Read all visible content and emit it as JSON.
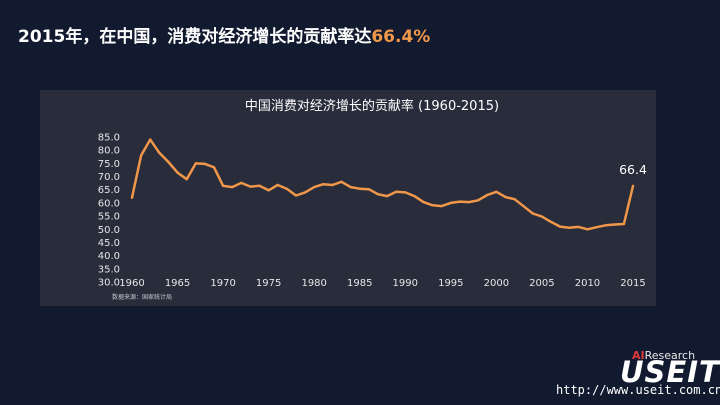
{
  "headline": {
    "prefix": "2015年，在中国，消费对经济增长的贡献率达",
    "value": "66.4%"
  },
  "chart_data": {
    "type": "line",
    "title": "中国消费对经济增长的贡献率 (1960-2015)",
    "source": "数据来源：国家统计局",
    "xlabel": "",
    "ylabel": "",
    "ylim": [
      30,
      85
    ],
    "y_ticks": [
      "85.0",
      "80.0",
      "75.0",
      "70.0",
      "65.0",
      "60.0",
      "55.0",
      "50.0",
      "45.0",
      "40.0",
      "35.0",
      "30.0"
    ],
    "x_ticks": [
      "1960",
      "1965",
      "1970",
      "1975",
      "1980",
      "1985",
      "1990",
      "1995",
      "2000",
      "2005",
      "2010",
      "2015"
    ],
    "end_label": "66.4",
    "colors": {
      "line": "#f0974a",
      "accent": "#f0974a"
    },
    "series": [
      {
        "name": "消费对经济增长的贡献率",
        "x": [
          1960,
          1961,
          1962,
          1963,
          1964,
          1965,
          1966,
          1967,
          1968,
          1969,
          1970,
          1971,
          1972,
          1973,
          1974,
          1975,
          1976,
          1977,
          1978,
          1979,
          1980,
          1981,
          1982,
          1983,
          1984,
          1985,
          1986,
          1987,
          1988,
          1989,
          1990,
          1991,
          1992,
          1993,
          1994,
          1995,
          1996,
          1997,
          1998,
          1999,
          2000,
          2001,
          2002,
          2003,
          2004,
          2005,
          2006,
          2007,
          2008,
          2009,
          2010,
          2011,
          2012,
          2013,
          2014,
          2015
        ],
        "values": [
          62.0,
          78.0,
          84.0,
          79.0,
          75.5,
          71.5,
          69.0,
          75.0,
          74.8,
          73.5,
          66.5,
          66.0,
          67.6,
          66.2,
          66.5,
          64.8,
          66.8,
          65.3,
          62.8,
          64.0,
          66.0,
          67.1,
          66.8,
          68.0,
          66.0,
          65.4,
          65.2,
          63.3,
          62.6,
          64.2,
          64.0,
          62.6,
          60.3,
          59.1,
          58.8,
          60.0,
          60.5,
          60.3,
          61.0,
          63.0,
          64.2,
          62.2,
          61.4,
          58.7,
          56.0,
          54.8,
          52.8,
          51.0,
          50.6,
          50.9,
          50.0,
          50.8,
          51.5,
          51.8,
          52.0,
          66.4
        ]
      }
    ]
  },
  "branding": {
    "small_ai": "AI",
    "small_rest": "Research",
    "big": "USEIT",
    "url": "http://www.useit.com.cn"
  }
}
